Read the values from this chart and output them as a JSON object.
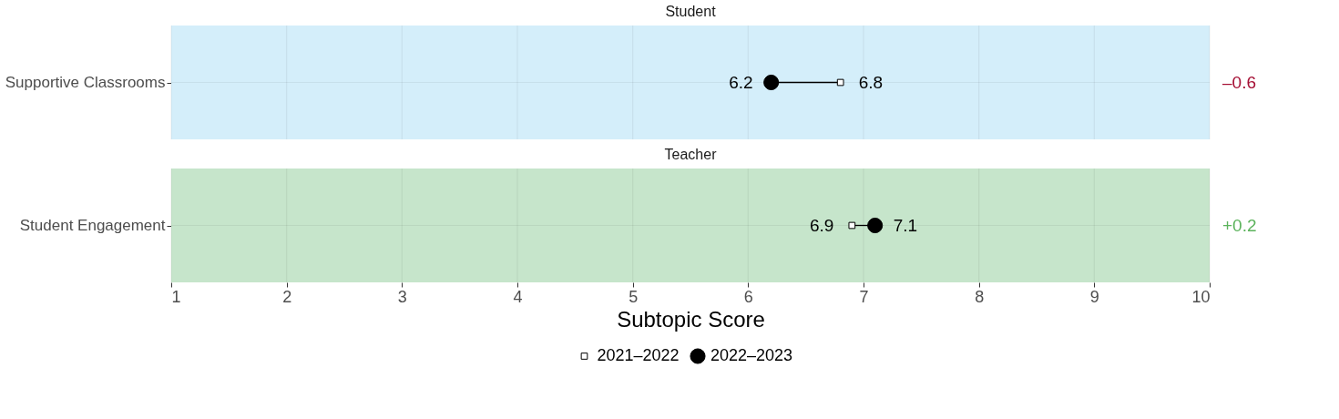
{
  "chart_data": [
    {
      "type": "scatter",
      "orientation": "horizontal",
      "title": "Student",
      "categories": [
        "Supportive Classrooms"
      ],
      "series": [
        {
          "name": "2021–2022",
          "color": "#ffffff",
          "marker": "square",
          "values": [
            6.8
          ]
        },
        {
          "name": "2022–2023",
          "color": "#000000",
          "marker": "circle",
          "values": [
            6.2
          ]
        }
      ],
      "xlim": [
        1,
        10
      ],
      "xticks": [
        1,
        2,
        3,
        4,
        5,
        6,
        7,
        8,
        9,
        10
      ],
      "tick_labels": "y",
      "grid": true,
      "data_labels": true,
      "bands": [
        {
          "axis": "x",
          "from": 1,
          "to": 10,
          "color": "#d4eefa"
        }
      ],
      "legend": "bottom",
      "annotations": [
        "–0.6"
      ]
    },
    {
      "type": "scatter",
      "orientation": "horizontal",
      "title": "Teacher",
      "xlabel": "Subtopic Score",
      "categories": [
        "Student Engagement"
      ],
      "series": [
        {
          "name": "2021–2022",
          "color": "#ffffff",
          "marker": "square",
          "values": [
            6.9
          ]
        },
        {
          "name": "2022–2023",
          "color": "#000000",
          "marker": "circle",
          "values": [
            7.1
          ]
        }
      ],
      "xlim": [
        1,
        10
      ],
      "xticks": [
        1,
        2,
        3,
        4,
        5,
        6,
        7,
        8,
        9,
        10
      ],
      "grid": true,
      "data_labels": true,
      "legend": "bottom",
      "bands": [
        {
          "axis": "x",
          "from": 1,
          "to": 10,
          "color": "#c6e5cb"
        }
      ],
      "annotations": [
        "+0.2"
      ]
    }
  ]
}
